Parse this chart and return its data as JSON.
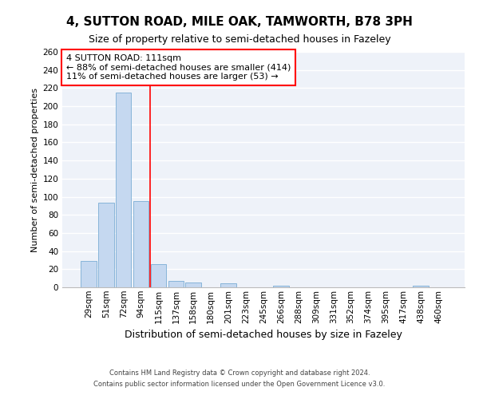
{
  "title1": "4, SUTTON ROAD, MILE OAK, TAMWORTH, B78 3PH",
  "title2": "Size of property relative to semi-detached houses in Fazeley",
  "xlabel": "Distribution of semi-detached houses by size in Fazeley",
  "ylabel": "Number of semi-detached properties",
  "categories": [
    "29sqm",
    "51sqm",
    "72sqm",
    "94sqm",
    "115sqm",
    "137sqm",
    "158sqm",
    "180sqm",
    "201sqm",
    "223sqm",
    "245sqm",
    "266sqm",
    "288sqm",
    "309sqm",
    "331sqm",
    "352sqm",
    "374sqm",
    "395sqm",
    "417sqm",
    "438sqm",
    "460sqm"
  ],
  "values": [
    29,
    93,
    215,
    95,
    26,
    7,
    5,
    0,
    4,
    0,
    0,
    2,
    0,
    0,
    0,
    0,
    0,
    0,
    0,
    2,
    0
  ],
  "bar_color": "#c5d8f0",
  "bar_edge_color": "#7aadd4",
  "red_line_x": 3.5,
  "annotation_line1": "4 SUTTON ROAD: 111sqm",
  "annotation_line2": "← 88% of semi-detached houses are smaller (414)",
  "annotation_line3": "11% of semi-detached houses are larger (53) →",
  "annotation_box_color": "white",
  "annotation_box_edge": "red",
  "ylim": [
    0,
    260
  ],
  "yticks": [
    0,
    20,
    40,
    60,
    80,
    100,
    120,
    140,
    160,
    180,
    200,
    220,
    240,
    260
  ],
  "footnote1": "Contains HM Land Registry data © Crown copyright and database right 2024.",
  "footnote2": "Contains public sector information licensed under the Open Government Licence v3.0.",
  "bg_color": "#eef2f9",
  "grid_color": "#ffffff",
  "title1_fontsize": 11,
  "title2_fontsize": 9,
  "xlabel_fontsize": 9,
  "ylabel_fontsize": 8,
  "tick_fontsize": 7.5,
  "footnote_fontsize": 6,
  "annotation_fontsize": 8
}
